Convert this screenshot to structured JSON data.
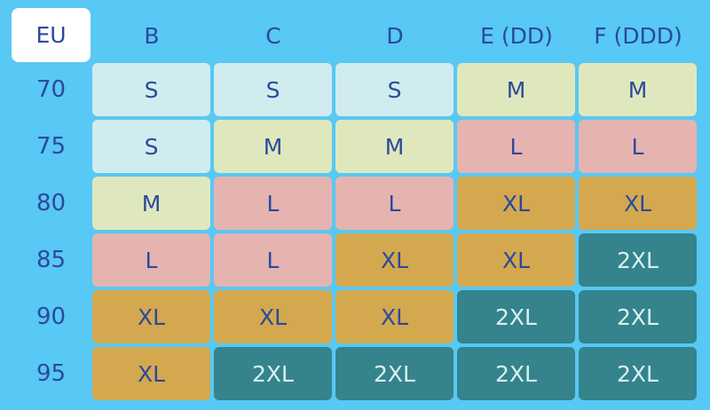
{
  "header": {
    "corner": "EU",
    "columns": [
      "B",
      "C",
      "D",
      "E (DD)",
      "F (DDD)"
    ]
  },
  "rows": [
    "70",
    "75",
    "80",
    "85",
    "90",
    "95"
  ],
  "cells": [
    [
      "S",
      "S",
      "S",
      "M",
      "M"
    ],
    [
      "S",
      "M",
      "M",
      "L",
      "L"
    ],
    [
      "M",
      "L",
      "L",
      "XL",
      "XL"
    ],
    [
      "L",
      "L",
      "XL",
      "XL",
      "2XL"
    ],
    [
      "XL",
      "XL",
      "XL",
      "2XL",
      "2XL"
    ],
    [
      "XL",
      "2XL",
      "2XL",
      "2XL",
      "2XL"
    ]
  ],
  "size_colors": {
    "S": "#d0ecee",
    "M": "#dfe8bd",
    "L": "#e6b4b0",
    "XL": "#d4a84f",
    "2XL": "#35838c"
  }
}
